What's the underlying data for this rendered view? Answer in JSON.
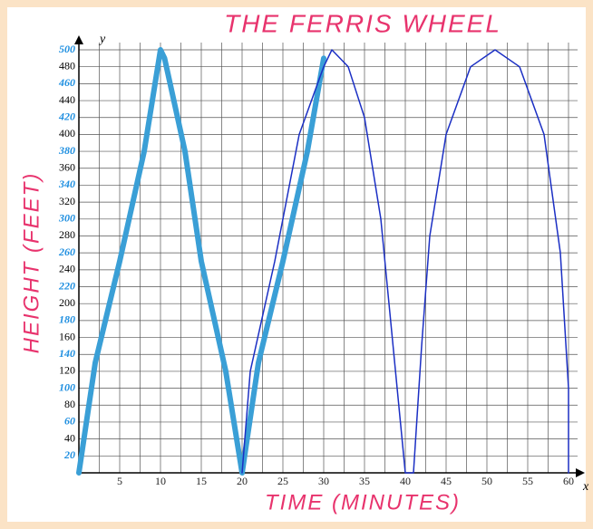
{
  "chart_data": {
    "type": "line",
    "title": "THE FERRIS WHEEL",
    "x_label": "TIME (MINUTES)",
    "y_label": "HEIGHT (FEET)",
    "x_axis_symbol": "x",
    "y_axis_symbol": "y",
    "xlim": [
      0,
      60
    ],
    "ylim": [
      0,
      500
    ],
    "xticks": [
      5,
      10,
      15,
      20,
      25,
      30,
      35,
      40,
      45,
      50,
      55,
      60
    ],
    "yticks": [
      20,
      40,
      60,
      80,
      100,
      120,
      140,
      160,
      180,
      200,
      220,
      240,
      260,
      280,
      300,
      320,
      340,
      360,
      380,
      400,
      420,
      440,
      460,
      480,
      500
    ],
    "grid": true,
    "series": [
      {
        "color": "#3a9fd6",
        "linewidth": 6,
        "x": [
          0,
          2,
          5,
          8,
          10,
          10.5,
          13,
          15,
          18,
          20,
          22,
          25,
          28,
          30
        ],
        "values": [
          0,
          130,
          250,
          380,
          500,
          490,
          380,
          250,
          120,
          0,
          130,
          250,
          380,
          490
        ]
      },
      {
        "color": "#1b2fc4",
        "linewidth": 1.5,
        "x": [
          20,
          21,
          24,
          27,
          30,
          31,
          33,
          35,
          37,
          38.5,
          39.5,
          40,
          41,
          42,
          43,
          45,
          48,
          51,
          54,
          57,
          59,
          60,
          60
        ],
        "values": [
          0,
          120,
          250,
          400,
          480,
          500,
          480,
          420,
          300,
          150,
          50,
          0,
          0,
          150,
          280,
          400,
          480,
          500,
          480,
          400,
          260,
          100,
          0
        ]
      }
    ]
  }
}
